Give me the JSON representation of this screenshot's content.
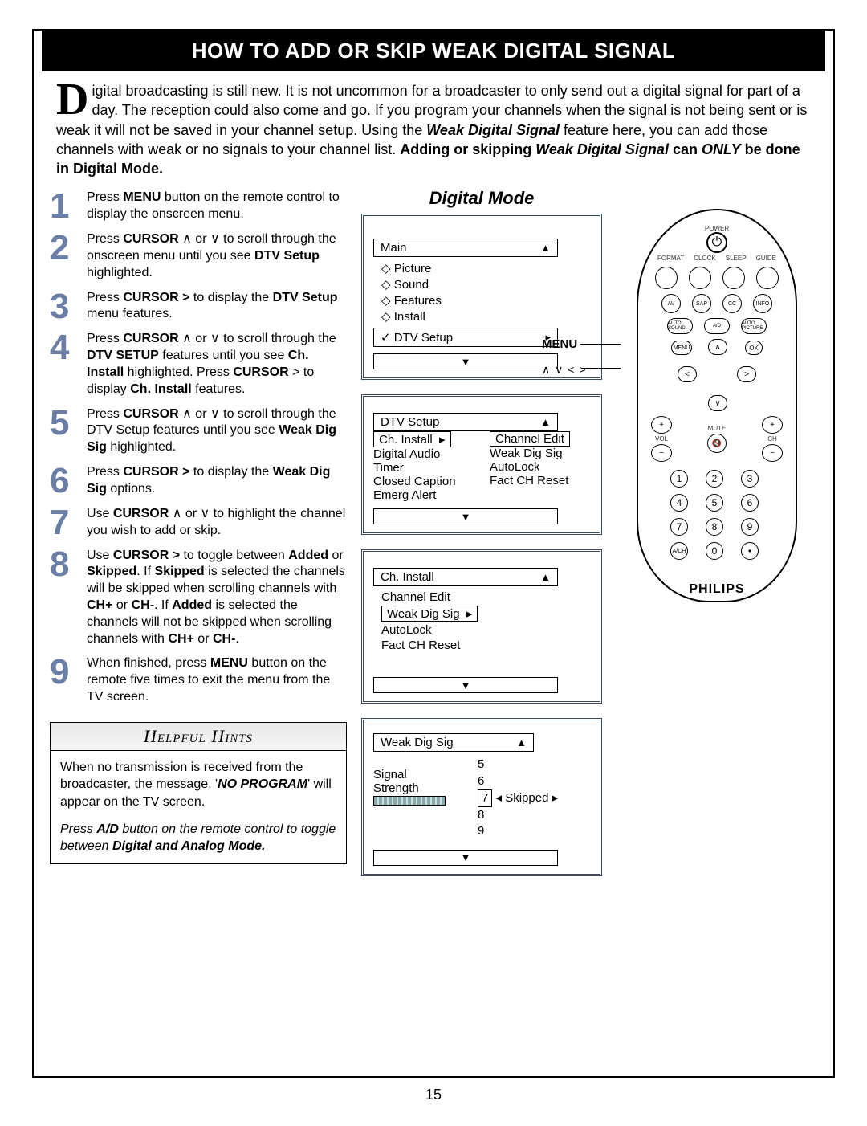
{
  "page_number": "15",
  "title": "HOW TO ADD OR SKIP WEAK DIGITAL SIGNAL",
  "intro_html": "igital broadcasting is still new.  It is not uncommon for a broadcaster to only send out a digital signal for part of a day.  The  reception could also come and go.  If you program your channels when the signal is not being sent or is weak it will not be saved in your channel setup.  Using the <b><i>Weak Digital Signal</i></b> feature here, you can add those channels with weak or no signals to your channel list.  <b>Adding or skipping <i>Weak Digital Signal</i> can <i>ONLY</i> be done in Digital Mode.</b>",
  "digital_mode_title": "Digital Mode",
  "steps": [
    "Press <b>MENU</b> button on the remote control to display the onscreen menu.",
    "Press <b>CURSOR</b>  ∧ or  ∨ to scroll through the onscreen menu until you see <b>DTV Setup</b> highlighted.",
    "Press <b>CURSOR  &gt;</b> to display the <b>DTV Setup</b> menu features.",
    "Press <b>CURSOR</b>  ∧ or  ∨ to scroll through the <b>DTV SETUP</b> features until you see <b>Ch. Install</b> highlighted.  Press <b>CURSOR</b> &gt; to display <b>Ch. Install</b> features.",
    "Press <b>CURSOR</b> ∧ or ∨ to scroll through  the DTV Setup features until you see <b>Weak Dig Sig</b> highlighted.",
    "Press <b>CURSOR  &gt;</b> to display the <b>Weak Dig Sig</b> options.",
    "Use  <b>CURSOR</b> ∧ or ∨ to highlight the channel you wish to add or skip.",
    "Use <b>CURSOR  &gt;</b>  to toggle between <b>Added</b> or <b>Skipped</b>.  If <b>Skipped</b> is selected the channels will be skipped when scrolling channels with <b>CH+</b> or <b>CH-</b>.  If <b>Added</b> is selected the channels will not be skipped when scrolling channels with <b>CH+</b> or <b>CH-</b>.",
    "When finished, press <b>MENU</b> button on the remote five times to exit the menu from the TV screen."
  ],
  "step_num_color": "#6b7fa6",
  "menu1": {
    "title": "Main",
    "items": [
      "Picture",
      "Sound",
      "Features",
      "Install"
    ],
    "selected": "DTV Setup"
  },
  "menu2": {
    "title": "DTV Setup",
    "left": [
      "Ch. Install",
      "Digital Audio",
      "Timer",
      "Closed Caption",
      "Emerg Alert"
    ],
    "right": [
      "Channel Edit",
      "Weak Dig Sig",
      "AutoLock",
      "Fact CH Reset"
    ],
    "selected_left": "Ch. Install",
    "right_label_boxed": "Channel Edit"
  },
  "menu3": {
    "title": "Ch. Install",
    "items": [
      "Channel Edit",
      "Weak Dig Sig",
      "AutoLock",
      "Fact CH Reset"
    ],
    "selected": "Weak Dig Sig"
  },
  "menu4": {
    "title": "Weak Dig Sig",
    "channels": [
      "5",
      "6",
      "7",
      "8",
      "9"
    ],
    "selected_channel": "7",
    "status": "Skipped",
    "signal_label": "Signal",
    "strength_label": "Strength"
  },
  "helpful": {
    "title": "Helpful Hints",
    "body1": "When no transmission is received from the broadcaster, the message, '<b><i>NO PROGRAM</i></b>' will appear on the TV screen.",
    "body2": "<i>Press <b>A/D</b> button on the remote control to toggle between <b>Digital and Analog Mode.</b></i>"
  },
  "remote": {
    "power_label": "POWER",
    "row1_labels": [
      "FORMAT",
      "CLOCK",
      "SLEEP",
      "GUIDE"
    ],
    "row2": [
      "AV",
      "SAP",
      "CC",
      "INFO"
    ],
    "row3": [
      "AUTO SOUND",
      "A/D",
      "AUTO PICTURE"
    ],
    "menu": "MENU",
    "ok": "OK",
    "cursor_label": "∧ ∨ < >",
    "menu_label": "MENU",
    "vol": "VOL",
    "ch": "CH",
    "mute": "MUTE",
    "numpad": [
      "1",
      "2",
      "3",
      "4",
      "5",
      "6",
      "7",
      "8",
      "9",
      "A/CH",
      "0",
      "•"
    ],
    "brand": "PHILIPS"
  }
}
